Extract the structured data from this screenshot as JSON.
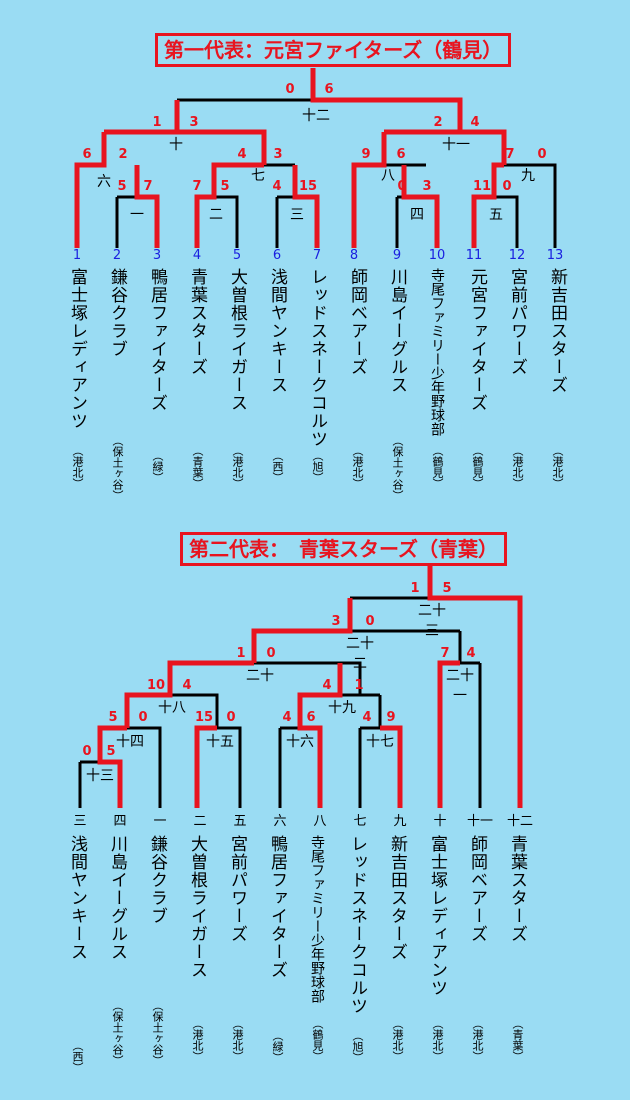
{
  "section1": {
    "title": "第一代表：元宮ファイターズ（鶴見）",
    "teams": [
      {
        "num": "1",
        "name": "富士塚レディアンツ",
        "loc": "（港北）"
      },
      {
        "num": "2",
        "name": "鎌谷クラブ",
        "loc": "（保土ヶ谷）"
      },
      {
        "num": "3",
        "name": "鴨居ファイターズ",
        "loc": "（緑）"
      },
      {
        "num": "4",
        "name": "青葉スターズ",
        "loc": "（青葉）"
      },
      {
        "num": "5",
        "name": "大曽根ライガース",
        "loc": "（港北）"
      },
      {
        "num": "6",
        "name": "浅間ヤンキース",
        "loc": "（西）"
      },
      {
        "num": "7",
        "name": "レッドスネークコルツ",
        "loc": "（旭）"
      },
      {
        "num": "8",
        "name": "師岡ベアーズ",
        "loc": "（港北）"
      },
      {
        "num": "9",
        "name": "川島イーグルス",
        "loc": "（保土ヶ谷）"
      },
      {
        "num": "10",
        "name": "寺尾ファミリー少年野球部",
        "loc": "（鶴見）"
      },
      {
        "num": "11",
        "name": "元宮ファイターズ",
        "loc": "（鶴見）"
      },
      {
        "num": "12",
        "name": "宮前パワーズ",
        "loc": "（港北）"
      },
      {
        "num": "13",
        "name": "新吉田スターズ",
        "loc": "（港北）"
      }
    ],
    "match_labels": [
      "一",
      "二",
      "三",
      "四",
      "五",
      "六",
      "七",
      "八",
      "九",
      "十",
      "十一",
      "十二"
    ],
    "scores": [
      "0",
      "6",
      "1",
      "3",
      "2",
      "4",
      "6",
      "2",
      "5",
      "7",
      "4",
      "3",
      "7",
      "5",
      "4",
      "15",
      "9",
      "6",
      "0",
      "3",
      "7",
      "0",
      "11",
      "0"
    ]
  },
  "section2": {
    "title": "第二代表：　青葉スターズ（青葉）",
    "teams": [
      {
        "slot": "三",
        "name": "浅間ヤンキース",
        "loc": "（西）"
      },
      {
        "slot": "四",
        "name": "川島イーグルス",
        "loc": "（保土ヶ谷）"
      },
      {
        "slot": "一",
        "name": "鎌谷クラブ",
        "loc": "（保土ヶ谷）"
      },
      {
        "slot": "二",
        "name": "大曽根ライガース",
        "loc": "（港北）"
      },
      {
        "slot": "五",
        "name": "宮前パワーズ",
        "loc": "（港北）"
      },
      {
        "slot": "六",
        "name": "鴨居ファイターズ",
        "loc": "（緑）"
      },
      {
        "slot": "八",
        "name": "寺尾ファミリー少年野球部",
        "loc": "（鶴見）"
      },
      {
        "slot": "七",
        "name": "レッドスネークコルツ",
        "loc": "（旭）"
      },
      {
        "slot": "九",
        "name": "新吉田スターズ",
        "loc": "（港北）"
      },
      {
        "slot": "十",
        "name": "富士塚レディアンツ",
        "loc": "（港北）"
      },
      {
        "slot": "十一",
        "name": "師岡ベアーズ",
        "loc": "（港北）"
      },
      {
        "slot": "十二",
        "name": "青葉スターズ",
        "loc": "（青葉）"
      }
    ],
    "match_labels": [
      "十三",
      "十四",
      "十五",
      "十六",
      "十七",
      "十八",
      "十九",
      "二十",
      "二十一",
      "二十二",
      "二十三"
    ],
    "scores": [
      "1",
      "5",
      "3",
      "0",
      "7",
      "4",
      "1",
      "0",
      "10",
      "4",
      "4",
      "1",
      "5",
      "0",
      "15",
      "0",
      "4",
      "6",
      "4",
      "9",
      "0",
      "5"
    ]
  },
  "colors": {
    "background": "#9adcf3",
    "winner_line": "#e8141f",
    "loser_line": "#000000",
    "seed_number": "#1a20e0"
  }
}
